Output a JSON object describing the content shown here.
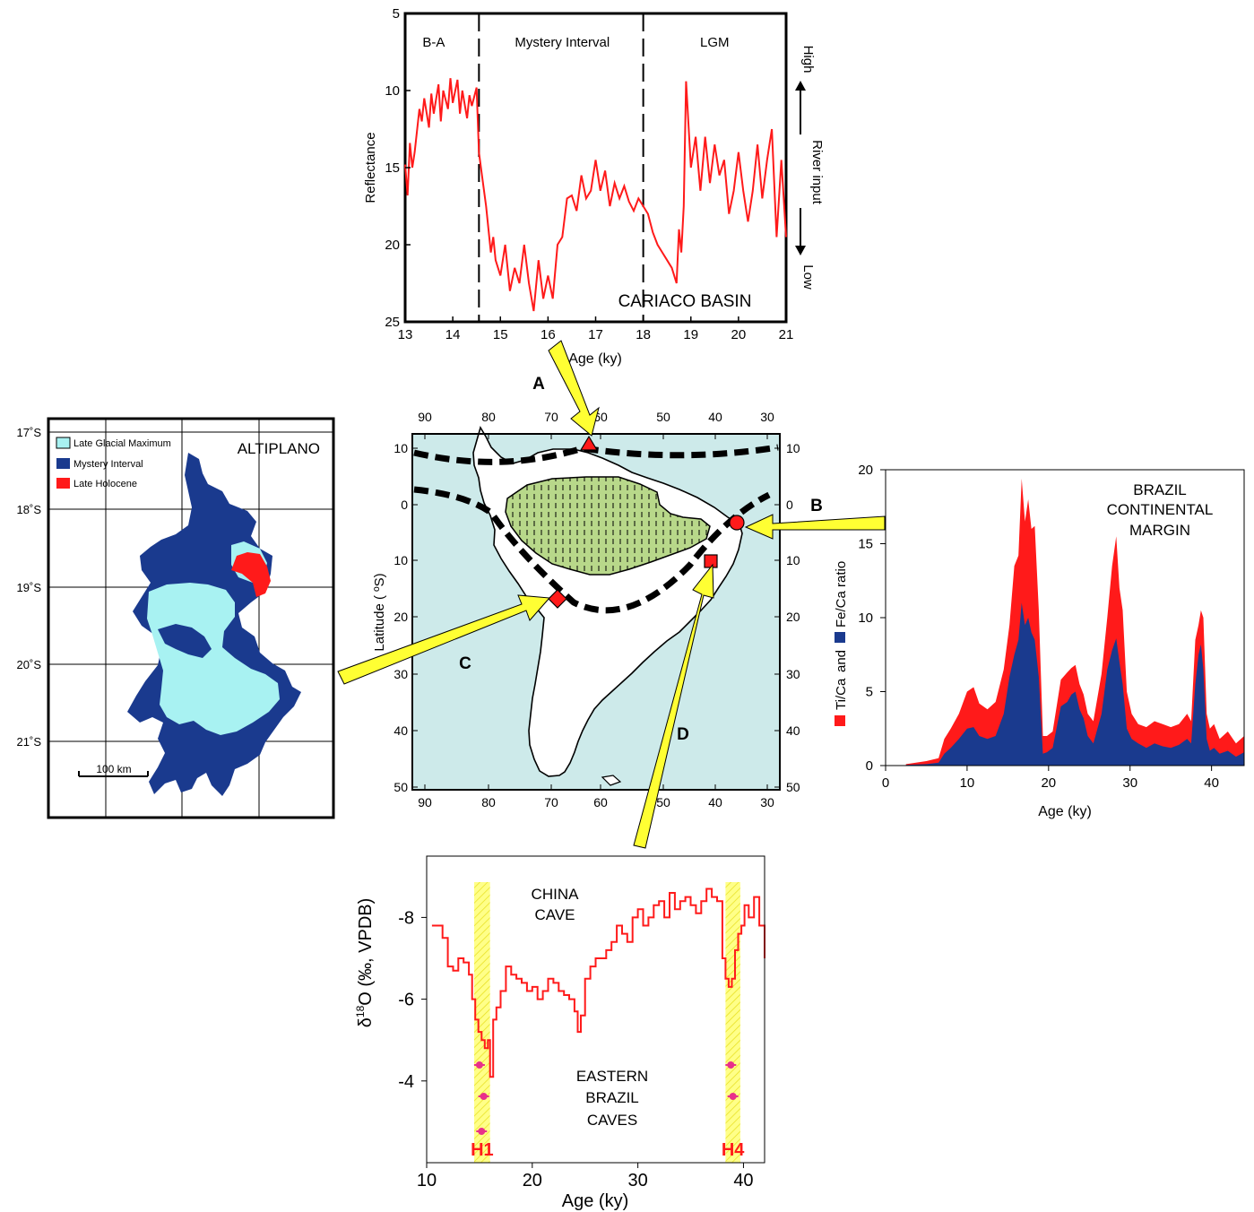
{
  "colors": {
    "red": "#ff1a1a",
    "navy": "#1a3a8e",
    "lightblue": "#a8f2f2",
    "ocean": "#cdeaea",
    "land_green": "#b8d88a",
    "yellow": "#ffff33",
    "yellow_band": "#ffff88",
    "magenta": "#e8308a"
  },
  "panel_letters": {
    "a": "A",
    "b": "B",
    "c": "C",
    "d": "D"
  },
  "chart_data": [
    {
      "id": "cariaco",
      "type": "line",
      "title": "CARIACO BASIN",
      "xlabel": "Age (ky)",
      "ylabel": "Reflectance",
      "right_label_top": "High",
      "right_label_mid": "River input",
      "right_label_bottom": "Low",
      "xlim": [
        13,
        21
      ],
      "ylim": [
        25,
        5
      ],
      "xticks": [
        13,
        14,
        15,
        16,
        17,
        18,
        19,
        20,
        21
      ],
      "yticks": [
        5,
        10,
        15,
        20,
        25
      ],
      "intervals": [
        {
          "label": "B-A",
          "at": 13.6
        },
        {
          "label": "Mystery Interval",
          "at": 16.3
        },
        {
          "label": "LGM",
          "at": 19.5
        }
      ],
      "dividers": [
        14.55,
        18.0
      ],
      "series": [
        {
          "x": [
            13.0,
            13.05,
            13.1,
            13.15,
            13.2,
            13.3,
            13.35,
            13.4,
            13.5,
            13.55,
            13.6,
            13.7,
            13.75,
            13.8,
            13.9,
            13.95,
            14.0,
            14.1,
            14.15,
            14.2,
            14.3,
            14.35,
            14.4,
            14.5,
            14.55,
            14.6,
            14.7,
            14.8,
            14.85,
            14.9,
            15.0,
            15.1,
            15.2,
            15.3,
            15.4,
            15.5,
            15.6,
            15.7,
            15.8,
            15.9,
            16.0,
            16.1,
            16.2,
            16.3,
            16.4,
            16.5,
            16.6,
            16.7,
            16.8,
            16.9,
            17.0,
            17.1,
            17.2,
            17.3,
            17.4,
            17.5,
            17.6,
            17.7,
            17.8,
            17.9,
            18.0,
            18.1,
            18.2,
            18.3,
            18.4,
            18.5,
            18.6,
            18.7,
            18.75,
            18.8,
            18.85,
            18.9,
            19.0,
            19.1,
            19.2,
            19.3,
            19.4,
            19.5,
            19.6,
            19.7,
            19.8,
            19.9,
            20.0,
            20.1,
            20.2,
            20.3,
            20.4,
            20.5,
            20.6,
            20.7,
            20.8,
            20.9,
            21.0
          ],
          "values": [
            14.8,
            16.8,
            13.4,
            15.0,
            14.0,
            11.2,
            12.0,
            10.5,
            12.4,
            10.2,
            11.5,
            9.6,
            12.0,
            10.0,
            11.2,
            9.2,
            10.8,
            9.3,
            11.5,
            10.0,
            11.8,
            10.3,
            11.0,
            9.8,
            14.0,
            15.2,
            17.5,
            20.5,
            19.5,
            21.0,
            22.0,
            20.0,
            23.0,
            21.5,
            22.5,
            20.0,
            22.5,
            24.3,
            21.0,
            23.5,
            22.0,
            23.5,
            20.0,
            19.5,
            17.0,
            16.8,
            17.8,
            15.5,
            17.0,
            16.5,
            14.5,
            16.5,
            15.2,
            17.5,
            16.0,
            17.0,
            16.2,
            17.2,
            17.8,
            17.0,
            17.5,
            18.0,
            19.2,
            20.0,
            20.5,
            21.0,
            21.5,
            22.5,
            19.0,
            20.5,
            17.5,
            9.4,
            15.0,
            13.0,
            16.5,
            13.0,
            16.0,
            13.5,
            15.5,
            14.5,
            18.0,
            16.5,
            14.0,
            16.5,
            18.5,
            16.5,
            13.5,
            17.0,
            14.5,
            12.5,
            19.5,
            14.5,
            19.5
          ]
        }
      ]
    },
    {
      "id": "brazil_margin",
      "type": "area",
      "title_lines": [
        "BRAZIL",
        "CONTINENTAL",
        "MARGIN"
      ],
      "xlabel": "Age (ky)",
      "ylabel_a": "Ti/Ca",
      "ylabel_and": "and",
      "ylabel_b": "Fe/Ca ratio",
      "xlim": [
        0,
        44
      ],
      "ylim": [
        0,
        20
      ],
      "xticks": [
        0,
        10,
        20,
        30,
        40
      ],
      "yticks": [
        0,
        5,
        10,
        15,
        20
      ],
      "x": [
        2.5,
        5,
        6.5,
        7.2,
        8,
        9,
        10,
        10.8,
        11.5,
        12.5,
        13.5,
        14.5,
        15.2,
        15.8,
        16.3,
        16.7,
        17.1,
        17.5,
        17.9,
        18.3,
        18.8,
        19.3,
        19.8,
        20.5,
        21.5,
        22.3,
        22.8,
        23.3,
        23.8,
        24.3,
        24.8,
        25.5,
        26.5,
        27.2,
        27.8,
        28.3,
        28.7,
        29.1,
        29.6,
        30.2,
        31,
        32,
        33,
        34,
        35,
        36,
        37,
        37.5,
        38,
        38.4,
        38.7,
        39,
        39.4,
        39.8,
        40.3,
        41,
        42,
        43,
        44
      ],
      "series": [
        {
          "name": "Ti/Ca",
          "values": [
            0.1,
            0.3,
            0.5,
            1.8,
            2.5,
            3.5,
            5.0,
            5.3,
            4.2,
            3.8,
            4.3,
            6.5,
            9.5,
            13.5,
            14.2,
            19.4,
            16.5,
            18.0,
            16.0,
            16.2,
            10.5,
            2.0,
            2.0,
            2.3,
            5.8,
            6.3,
            6.6,
            6.8,
            5.5,
            4.8,
            3.5,
            3.0,
            6.2,
            10.0,
            13.5,
            15.5,
            12.0,
            10.5,
            5.0,
            3.5,
            2.8,
            2.6,
            3.0,
            2.8,
            2.6,
            2.8,
            3.5,
            3.0,
            8.5,
            9.5,
            10.5,
            10.0,
            3.5,
            2.5,
            2.8,
            1.8,
            2.3,
            1.5,
            2.0
          ]
        },
        {
          "name": "Fe/Ca",
          "values": [
            0.05,
            0.1,
            0.2,
            0.8,
            1.2,
            1.8,
            2.5,
            2.6,
            2.0,
            1.8,
            2.0,
            3.5,
            6.0,
            7.5,
            8.5,
            11.0,
            9.5,
            10.0,
            9.0,
            8.5,
            6.0,
            0.8,
            0.9,
            1.2,
            4.0,
            4.3,
            4.8,
            5.0,
            3.8,
            3.2,
            2.0,
            1.5,
            3.5,
            6.5,
            7.8,
            8.6,
            7.0,
            5.5,
            2.5,
            1.8,
            1.5,
            1.2,
            1.5,
            1.3,
            1.2,
            1.4,
            1.8,
            1.5,
            5.5,
            7.5,
            8.2,
            6.5,
            1.8,
            1.0,
            1.2,
            0.8,
            1.0,
            0.6,
            0.9
          ]
        }
      ]
    },
    {
      "id": "caves",
      "type": "line",
      "title_upper": [
        "CHINA",
        "CAVE"
      ],
      "title_lower": [
        "EASTERN",
        "BRAZIL",
        "CAVES"
      ],
      "xlabel": "Age (ky)",
      "ylabel_prefix": "δ",
      "ylabel_sup": "18",
      "ylabel_rest": "O (‰, VPDB)",
      "xlim": [
        10,
        42
      ],
      "ylim": [
        -2,
        -9.5
      ],
      "xticks": [
        10,
        20,
        30,
        40
      ],
      "ytick_values": [
        -8,
        -6,
        -4
      ],
      "ytick_labels": [
        "-8",
        "-6",
        "-4"
      ],
      "bands": [
        {
          "label": "H1",
          "from": 14.5,
          "to": 16.0
        },
        {
          "label": "H4",
          "from": 38.3,
          "to": 39.7
        }
      ],
      "series": [
        {
          "name": "China Cave",
          "x": [
            10.5,
            11,
            11.5,
            12,
            12.5,
            13,
            13.5,
            14,
            14.3,
            14.6,
            14.9,
            15.2,
            15.5,
            15.8,
            16.0,
            16.3,
            16.6,
            17,
            17.5,
            18,
            18.5,
            19,
            19.5,
            20,
            20.5,
            21,
            21.5,
            22,
            22.5,
            23,
            23.5,
            24,
            24.3,
            24.6,
            25,
            25.5,
            26,
            26.5,
            27,
            27.5,
            28,
            28.5,
            29,
            29.5,
            30,
            30.5,
            31,
            31.5,
            32,
            32.5,
            33,
            33.5,
            34,
            34.5,
            35,
            35.5,
            36,
            36.5,
            37,
            37.5,
            38,
            38.3,
            38.6,
            38.9,
            39.2,
            39.5,
            39.8,
            40.1,
            40.5,
            41,
            41.5,
            42
          ],
          "values": [
            -7.8,
            -7.8,
            -7.5,
            -6.8,
            -6.7,
            -7.0,
            -6.9,
            -6.6,
            -6.0,
            -5.5,
            -5.2,
            -5.0,
            -4.8,
            -5.0,
            -4.1,
            -5.5,
            -5.8,
            -6.2,
            -6.8,
            -6.6,
            -6.5,
            -6.4,
            -6.2,
            -6.3,
            -6.0,
            -6.2,
            -6.5,
            -6.4,
            -6.2,
            -6.1,
            -6.0,
            -5.7,
            -5.2,
            -5.6,
            -6.5,
            -6.8,
            -7.0,
            -7.0,
            -7.2,
            -7.4,
            -7.8,
            -7.6,
            -7.4,
            -8.0,
            -8.2,
            -7.8,
            -8.0,
            -8.3,
            -8.4,
            -8.0,
            -8.6,
            -8.2,
            -8.4,
            -8.5,
            -8.3,
            -8.1,
            -8.4,
            -8.7,
            -8.5,
            -8.4,
            -7.0,
            -6.5,
            -6.3,
            -6.5,
            -7.2,
            -7.6,
            -7.8,
            -8.3,
            -8.0,
            -8.5,
            -7.8,
            -7.0
          ]
        }
      ],
      "markers": [
        {
          "x": 15.0,
          "pos": "upper"
        },
        {
          "x": 15.4,
          "pos": "middle"
        },
        {
          "x": 15.2,
          "pos": "lower"
        },
        {
          "x": 38.8,
          "pos": "upper"
        },
        {
          "x": 39.0,
          "pos": "middle"
        }
      ]
    }
  ],
  "map": {
    "lon_ticks": [
      "90",
      "80",
      "70",
      "60",
      "50",
      "40",
      "30"
    ],
    "lat_ticks": [
      "10",
      "0",
      "10",
      "20",
      "30",
      "40",
      "50"
    ],
    "ylabel": "Latitude ( ºS)"
  },
  "altiplano": {
    "title": "ALTIPLANO",
    "legend": [
      {
        "label": "Late Glacial Maximum",
        "color": "#a8f2f2"
      },
      {
        "label": "Mystery Interval",
        "color": "#1a3a8e"
      },
      {
        "label": "Late Holocene",
        "color": "#ff1a1a"
      }
    ],
    "lat_labels": [
      "17˚S",
      "18˚S",
      "19˚S",
      "20˚S",
      "21˚S"
    ],
    "scale_label": "100 km"
  }
}
